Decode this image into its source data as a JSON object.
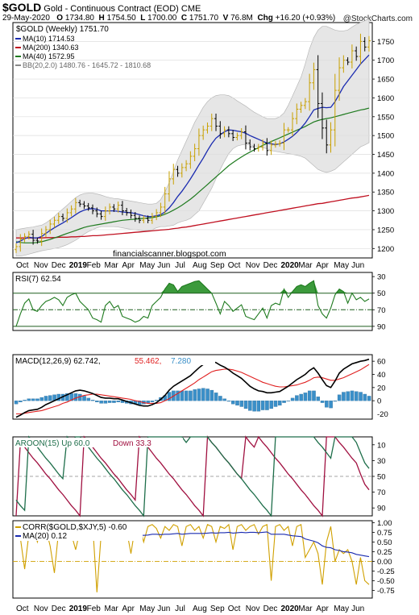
{
  "header": {
    "symbol": "$GOLD",
    "name": "Gold - Continuous Contract (EOD)",
    "exchange": "CME",
    "date": "29-May-2020",
    "open_label": "O",
    "open": "1734.80",
    "high_label": "H",
    "high": "1754.50",
    "low_label": "L",
    "low": "1700.00",
    "close_label": "C",
    "close": "1751.70",
    "volume_label": "V",
    "volume": "76.8M",
    "chg_label": "Chg",
    "chg": "+16.20 (+0.93%)",
    "watermark": "@StockCharts.com",
    "blog": "financialscanner.blogspot.com"
  },
  "colors": {
    "up_candle": "#c8a000",
    "down_candle": "#000000",
    "ma10": "#1a2bb0",
    "ma200": "#c01020",
    "ma40": "#1e7a1e",
    "bb_fill": "#e6e6e6",
    "rsi": "#1e7a1e",
    "macd": "#000000",
    "signal": "#e02020",
    "histogram": "#3a8fc8",
    "aroon_up": "#1e6e4a",
    "aroon_down": "#a01040",
    "corr": "#d0a000",
    "corr_ma": "#1a2bb0"
  },
  "chart_data": [
    {
      "type": "candlestick",
      "title": "$GOLD (Weekly) 1751.70",
      "legend": [
        {
          "key": "ma10",
          "text": "MA(10) 1714.53"
        },
        {
          "key": "ma200",
          "text": "MA(200) 1340.63"
        },
        {
          "key": "ma40",
          "text": "MA(40) 1572.95"
        },
        {
          "key": "bb",
          "text": "BB(20,2.0) 1480.76 - 1645.72 - 1810.68"
        }
      ],
      "x_labels": [
        "Oct",
        "Nov",
        "Dec",
        "2019",
        "Feb",
        "Mar",
        "Apr",
        "May",
        "Jun",
        "Jul",
        "Aug",
        "Sep",
        "Oct",
        "Nov",
        "Dec",
        "2020",
        "Mar",
        "Apr",
        "May",
        "Jun"
      ],
      "ylim": [
        1175,
        1800
      ],
      "yticks": [
        1200,
        1250,
        1300,
        1350,
        1400,
        1450,
        1500,
        1550,
        1600,
        1650,
        1700,
        1750
      ],
      "close": [
        1205,
        1225,
        1232,
        1238,
        1222,
        1220,
        1240,
        1250,
        1265,
        1275,
        1285,
        1280,
        1295,
        1305,
        1322,
        1318,
        1313,
        1308,
        1300,
        1292,
        1285,
        1300,
        1310,
        1305,
        1315,
        1300,
        1295,
        1288,
        1280,
        1275,
        1280,
        1275,
        1285,
        1295,
        1310,
        1345,
        1385,
        1410,
        1400,
        1415,
        1425,
        1445,
        1465,
        1500,
        1515,
        1525,
        1545,
        1525,
        1505,
        1515,
        1505,
        1495,
        1500,
        1510,
        1480,
        1470,
        1465,
        1470,
        1480,
        1460,
        1475,
        1478,
        1480,
        1515,
        1515,
        1545,
        1570,
        1580,
        1590,
        1640,
        1675,
        1585,
        1520,
        1475,
        1515,
        1620,
        1680,
        1700,
        1695,
        1725,
        1710,
        1750,
        1735,
        1752
      ],
      "ma10": [
        1215,
        1220,
        1226,
        1230,
        1228,
        1228,
        1232,
        1240,
        1248,
        1255,
        1262,
        1268,
        1275,
        1282,
        1290,
        1297,
        1302,
        1305,
        1306,
        1304,
        1300,
        1300,
        1300,
        1300,
        1299,
        1297,
        1296,
        1295,
        1293,
        1290,
        1287,
        1285,
        1285,
        1287,
        1290,
        1297,
        1308,
        1322,
        1338,
        1352,
        1368,
        1385,
        1403,
        1422,
        1440,
        1460,
        1478,
        1493,
        1502,
        1510,
        1515,
        1514,
        1512,
        1510,
        1506,
        1500,
        1495,
        1490,
        1485,
        1480,
        1478,
        1476,
        1478,
        1483,
        1490,
        1498,
        1508,
        1520,
        1533,
        1550,
        1568,
        1572,
        1575,
        1574,
        1575,
        1590,
        1610,
        1630,
        1645,
        1660,
        1675,
        1690,
        1702,
        1714
      ],
      "ma40": [
        1218,
        1216,
        1215,
        1215,
        1215,
        1216,
        1218,
        1221,
        1224,
        1228,
        1232,
        1236,
        1240,
        1244,
        1248,
        1252,
        1256,
        1259,
        1261,
        1263,
        1265,
        1267,
        1269,
        1271,
        1273,
        1275,
        1276,
        1277,
        1278,
        1279,
        1280,
        1281,
        1282,
        1284,
        1287,
        1291,
        1296,
        1302,
        1308,
        1315,
        1323,
        1331,
        1340,
        1350,
        1360,
        1370,
        1380,
        1390,
        1400,
        1410,
        1420,
        1428,
        1436,
        1443,
        1450,
        1456,
        1462,
        1468,
        1474,
        1479,
        1484,
        1489,
        1494,
        1499,
        1504,
        1509,
        1514,
        1519,
        1524,
        1530,
        1536,
        1540,
        1543,
        1545,
        1547,
        1550,
        1553,
        1556,
        1559,
        1562,
        1565,
        1568,
        1570,
        1573
      ],
      "ma200": [
        1228,
        1228,
        1228,
        1228,
        1228,
        1228,
        1228,
        1229,
        1229,
        1229,
        1230,
        1230,
        1230,
        1231,
        1231,
        1232,
        1232,
        1233,
        1234,
        1234,
        1235,
        1236,
        1237,
        1238,
        1239,
        1240,
        1241,
        1242,
        1243,
        1244,
        1245,
        1246,
        1247,
        1248,
        1249,
        1250,
        1251,
        1253,
        1254,
        1256,
        1257,
        1259,
        1261,
        1263,
        1265,
        1267,
        1269,
        1271,
        1273,
        1275,
        1277,
        1279,
        1281,
        1283,
        1285,
        1287,
        1289,
        1291,
        1293,
        1295,
        1297,
        1299,
        1301,
        1303,
        1305,
        1307,
        1309,
        1311,
        1313,
        1315,
        1317,
        1319,
        1320,
        1322,
        1324,
        1326,
        1328,
        1330,
        1332,
        1334,
        1335,
        1337,
        1339,
        1341
      ],
      "bb_upper": [
        1250,
        1252,
        1254,
        1256,
        1257,
        1260,
        1262,
        1268,
        1276,
        1285,
        1296,
        1305,
        1315,
        1325,
        1335,
        1342,
        1346,
        1347,
        1347,
        1345,
        1342,
        1338,
        1335,
        1333,
        1332,
        1330,
        1328,
        1326,
        1324,
        1322,
        1320,
        1318,
        1318,
        1320,
        1330,
        1350,
        1375,
        1405,
        1435,
        1460,
        1485,
        1510,
        1535,
        1555,
        1575,
        1590,
        1600,
        1606,
        1608,
        1608,
        1606,
        1600,
        1592,
        1585,
        1578,
        1570,
        1562,
        1556,
        1550,
        1545,
        1545,
        1545,
        1550,
        1560,
        1580,
        1605,
        1630,
        1655,
        1690,
        1730,
        1760,
        1780,
        1790,
        1790,
        1785,
        1780,
        1778,
        1778,
        1780,
        1788,
        1795,
        1800,
        1805,
        1810
      ],
      "bb_lower": [
        1180,
        1180,
        1182,
        1185,
        1188,
        1191,
        1194,
        1196,
        1198,
        1200,
        1202,
        1206,
        1210,
        1216,
        1222,
        1230,
        1238,
        1245,
        1250,
        1255,
        1258,
        1258,
        1258,
        1258,
        1257,
        1255,
        1253,
        1251,
        1250,
        1248,
        1247,
        1248,
        1250,
        1255,
        1258,
        1258,
        1260,
        1262,
        1268,
        1272,
        1275,
        1280,
        1290,
        1300,
        1320,
        1340,
        1360,
        1385,
        1410,
        1432,
        1452,
        1465,
        1472,
        1475,
        1477,
        1475,
        1473,
        1470,
        1468,
        1465,
        1460,
        1458,
        1456,
        1454,
        1452,
        1450,
        1448,
        1445,
        1440,
        1430,
        1420,
        1410,
        1405,
        1402,
        1405,
        1410,
        1420,
        1430,
        1440,
        1450,
        1460,
        1470,
        1475,
        1481
      ]
    },
    {
      "type": "line",
      "title": "RSI(7) 62.54",
      "ylim": [
        25,
        95
      ],
      "yticks": [
        30,
        50,
        70,
        90
      ],
      "overbought": 70,
      "oversold": 30,
      "midline": 50,
      "values": [
        30,
        45,
        58,
        63,
        50,
        48,
        55,
        60,
        62,
        65,
        62,
        55,
        65,
        68,
        70,
        60,
        55,
        50,
        40,
        38,
        35,
        55,
        60,
        52,
        55,
        42,
        40,
        38,
        35,
        37,
        42,
        40,
        55,
        60,
        65,
        75,
        82,
        80,
        72,
        78,
        80,
        82,
        84,
        85,
        80,
        75,
        70,
        58,
        45,
        60,
        55,
        48,
        52,
        56,
        42,
        40,
        38,
        45,
        52,
        40,
        55,
        58,
        56,
        75,
        65,
        72,
        78,
        80,
        78,
        82,
        85,
        55,
        45,
        40,
        52,
        68,
        75,
        72,
        58,
        70,
        62,
        65,
        60,
        63
      ]
    },
    {
      "type": "line",
      "title": "MACD(12,26,9) 62.742, 55.462, 7.280",
      "legend": [
        {
          "key": "macd",
          "text": "MACD(12,26,9) 62.742,"
        },
        {
          "key": "signal",
          "text": "55.462,"
        },
        {
          "key": "histogram",
          "text": "7.280"
        }
      ],
      "ylim": [
        -28,
        70
      ],
      "yticks": [
        0,
        20,
        40,
        60
      ],
      "macd": [
        -25,
        -22,
        -18,
        -15,
        -14,
        -13,
        -10,
        -6,
        -3,
        0,
        3,
        6,
        9,
        12,
        15,
        16,
        15,
        13,
        11,
        8,
        5,
        4,
        4,
        3,
        3,
        1,
        -1,
        -3,
        -5,
        -7,
        -8,
        -8,
        -6,
        -3,
        2,
        8,
        16,
        22,
        26,
        30,
        34,
        38,
        44,
        50,
        55,
        58,
        60,
        58,
        54,
        51,
        47,
        42,
        38,
        34,
        28,
        22,
        18,
        15,
        14,
        12,
        12,
        13,
        14,
        18,
        22,
        27,
        32,
        36,
        40,
        46,
        50,
        42,
        32,
        23,
        20,
        30,
        42,
        48,
        52,
        56,
        58,
        60,
        61,
        63
      ],
      "signal": [
        -20,
        -20,
        -19,
        -18,
        -17,
        -16,
        -15,
        -13,
        -11,
        -9,
        -7,
        -4,
        -2,
        1,
        4,
        6,
        8,
        9,
        10,
        10,
        9,
        8,
        7,
        6,
        5,
        4,
        3,
        2,
        0,
        -1,
        -3,
        -4,
        -4,
        -4,
        -3,
        0,
        3,
        7,
        11,
        15,
        19,
        23,
        27,
        32,
        36,
        40,
        44,
        46,
        47,
        48,
        48,
        47,
        45,
        43,
        40,
        37,
        34,
        31,
        28,
        26,
        24,
        22,
        21,
        21,
        22,
        23,
        24,
        26,
        28,
        31,
        35,
        36,
        35,
        33,
        31,
        31,
        33,
        35,
        38,
        41,
        44,
        47,
        51,
        55
      ],
      "histogram": [
        -5,
        -2,
        1,
        3,
        3,
        3,
        5,
        7,
        8,
        9,
        10,
        10,
        11,
        11,
        11,
        10,
        7,
        4,
        1,
        -2,
        -4,
        -4,
        -3,
        -3,
        -2,
        -3,
        -4,
        -5,
        -5,
        -6,
        -5,
        -4,
        -2,
        1,
        5,
        8,
        13,
        15,
        15,
        15,
        15,
        15,
        17,
        18,
        19,
        18,
        16,
        12,
        7,
        3,
        -1,
        -5,
        -7,
        -9,
        -12,
        -15,
        -16,
        -16,
        -14,
        -14,
        -12,
        -9,
        -7,
        -3,
        0,
        4,
        8,
        10,
        12,
        15,
        15,
        6,
        -3,
        -10,
        -11,
        -1,
        9,
        13,
        14,
        15,
        14,
        13,
        10,
        7
      ]
    },
    {
      "type": "line",
      "title": "AROON(15) Up 60.0 Down 33.3",
      "legend": [
        {
          "key": "aroon_up",
          "text": "AROON(15) Up 60.0"
        },
        {
          "key": "aroon_down",
          "text": "Down 33.3"
        }
      ],
      "ylim": [
        0,
        100
      ],
      "yticks": [
        10,
        30,
        50,
        70,
        90
      ],
      "up": [
        20,
        13,
        7,
        100,
        93,
        87,
        80,
        73,
        67,
        60,
        53,
        47,
        100,
        93,
        100,
        100,
        93,
        87,
        80,
        73,
        67,
        60,
        53,
        47,
        40,
        33,
        27,
        20,
        13,
        7,
        0,
        100,
        100,
        100,
        100,
        100,
        100,
        100,
        100,
        100,
        93,
        100,
        100,
        100,
        100,
        100,
        93,
        87,
        80,
        73,
        67,
        60,
        53,
        47,
        40,
        33,
        27,
        20,
        13,
        7,
        0,
        100,
        100,
        100,
        100,
        100,
        100,
        100,
        100,
        100,
        100,
        93,
        87,
        80,
        73,
        100,
        100,
        100,
        100,
        100,
        93,
        80,
        67,
        60
      ],
      "down": [
        0,
        93,
        87,
        80,
        73,
        67,
        60,
        53,
        47,
        40,
        33,
        27,
        20,
        13,
        7,
        0,
        100,
        93,
        87,
        80,
        73,
        67,
        60,
        53,
        47,
        40,
        33,
        27,
        20,
        100,
        93,
        87,
        80,
        73,
        67,
        60,
        53,
        47,
        40,
        33,
        27,
        20,
        13,
        7,
        0,
        100,
        93,
        87,
        80,
        73,
        67,
        60,
        53,
        47,
        100,
        93,
        87,
        100,
        93,
        87,
        80,
        73,
        67,
        60,
        53,
        47,
        40,
        33,
        27,
        20,
        13,
        7,
        0,
        100,
        100,
        100,
        93,
        87,
        80,
        73,
        67,
        53,
        40,
        33
      ]
    },
    {
      "type": "line",
      "title": "CORR($GOLD,$XJY,5) -0.60",
      "legend": [
        {
          "key": "corr",
          "text": "CORR($GOLD,$XJY,5) -0.60"
        },
        {
          "key": "corr_ma",
          "text": "MA(20) 0.12"
        }
      ],
      "x_labels": [
        "Oct",
        "Nov",
        "Dec",
        "2019",
        "Feb",
        "Mar",
        "Apr",
        "May",
        "Jun",
        "Jul",
        "Aug",
        "Sep",
        "Oct",
        "Nov",
        "Dec",
        "2020",
        "Mar",
        "Apr",
        "May",
        "Jun"
      ],
      "ylim": [
        -0.95,
        1.05
      ],
      "yticks": [
        -0.75,
        -0.5,
        -0.25,
        0.0,
        0.25,
        0.5,
        0.75,
        1.0
      ],
      "corr": [
        0.8,
        0.6,
        -0.2,
        0.7,
        0.9,
        0.5,
        0.9,
        0.85,
        0.4,
        -0.3,
        0.8,
        0.9,
        0.95,
        0.7,
        0.3,
        0.8,
        0.9,
        0.6,
        0.95,
        -0.8,
        0.7,
        0.9,
        0.85,
        0.95,
        0.6,
        0.9,
        0.8,
        0.2,
        0.9,
        0.95,
        0.5,
        0.9,
        0.95,
        0.85,
        0.6,
        0.9,
        0.8,
        0.95,
        0.9,
        0.4,
        0.9,
        0.95,
        0.8,
        0.9,
        0.6,
        0.95,
        0.9,
        0.5,
        0.9,
        0.85,
        0.95,
        0.3,
        0.9,
        0.95,
        0.8,
        0.9,
        0.95,
        0.7,
        0.9,
        0.95,
        -0.5,
        0.9,
        0.95,
        0.8,
        0.9,
        0.4,
        0.9,
        0.95,
        0.1,
        0.3,
        0.5,
        0.2,
        -0.6,
        0.5,
        0.9,
        0.0,
        0.3,
        0.2,
        0.3,
        0.0,
        -0.6,
        0.1,
        -0.5,
        -0.6
      ],
      "ma": [
        0.55,
        0.55,
        0.55,
        0.56,
        0.58,
        0.58,
        0.6,
        0.62,
        0.62,
        0.6,
        0.62,
        0.63,
        0.65,
        0.65,
        0.64,
        0.64,
        0.65,
        0.65,
        0.66,
        0.6,
        0.6,
        0.62,
        0.62,
        0.64,
        0.64,
        0.66,
        0.66,
        0.64,
        0.66,
        0.68,
        0.67,
        0.68,
        0.7,
        0.7,
        0.69,
        0.7,
        0.7,
        0.71,
        0.72,
        0.7,
        0.71,
        0.72,
        0.72,
        0.72,
        0.72,
        0.73,
        0.74,
        0.73,
        0.74,
        0.74,
        0.75,
        0.73,
        0.74,
        0.75,
        0.74,
        0.75,
        0.75,
        0.74,
        0.75,
        0.76,
        0.7,
        0.7,
        0.7,
        0.7,
        0.68,
        0.66,
        0.65,
        0.64,
        0.58,
        0.55,
        0.52,
        0.48,
        0.4,
        0.36,
        0.35,
        0.3,
        0.28,
        0.25,
        0.24,
        0.22,
        0.18,
        0.16,
        0.14,
        0.12
      ]
    }
  ],
  "rsi_axis_labels": [
    "90",
    "70",
    "50",
    "30"
  ],
  "macd_axis_labels": [
    "60",
    "40",
    "20",
    "0",
    "-20"
  ],
  "aroon_axis_labels": [
    "90",
    "70",
    "50",
    "30",
    "10"
  ],
  "corr_axis_labels": [
    "1.00",
    "0.75",
    "0.50",
    "0.25",
    "0.00",
    "-0.25",
    "-0.50",
    "-0.75"
  ]
}
